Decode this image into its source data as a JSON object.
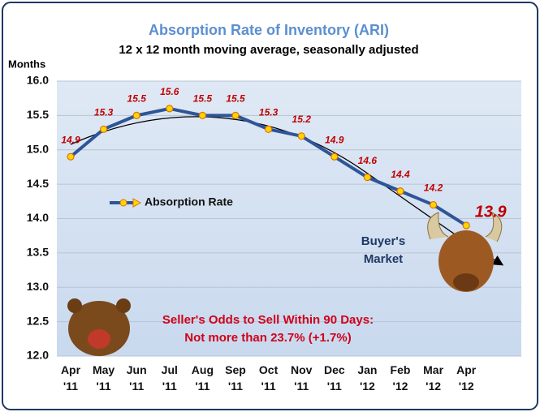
{
  "chart_data": {
    "type": "line",
    "title": "Absorption Rate of  Inventory (ARI)",
    "subtitle": "12 x 12 month moving average, seasonally adjusted",
    "y_label": "Months",
    "categories": [
      "Apr '11",
      "May '11",
      "Jun '11",
      "Jul '11",
      "Aug '11",
      "Sep '11",
      "Oct '11",
      "Nov '11",
      "Dec '11",
      "Jan '12",
      "Feb '12",
      "Mar '12",
      "Apr '12"
    ],
    "series": [
      {
        "name": "Absorption Rate",
        "color": "#2e5597",
        "marker_color": "#ffd700",
        "values": [
          14.9,
          15.3,
          15.5,
          15.6,
          15.5,
          15.5,
          15.3,
          15.2,
          14.9,
          14.6,
          14.4,
          14.2,
          13.9
        ]
      }
    ],
    "ylim": [
      12.0,
      16.0
    ],
    "yticks": [
      {
        "value": 12.0,
        "label": "12.0"
      },
      {
        "value": 12.5,
        "label": "12.5"
      },
      {
        "value": 13.0,
        "label": "13.0"
      },
      {
        "value": 13.5,
        "label": "13.5"
      },
      {
        "value": 14.0,
        "label": "14.0"
      },
      {
        "value": 14.5,
        "label": "14.5"
      },
      {
        "value": 15.0,
        "label": "15.0"
      },
      {
        "value": 15.5,
        "label": "15.5"
      },
      {
        "value": 16.0,
        "label": "16.0"
      }
    ],
    "grid": true,
    "legend": "center-left",
    "annotations": [
      "Buyer's Market",
      "Seller's Odds to Sell Within 90 Days:",
      "Not more than  23.7% (+1.7%)"
    ]
  }
}
